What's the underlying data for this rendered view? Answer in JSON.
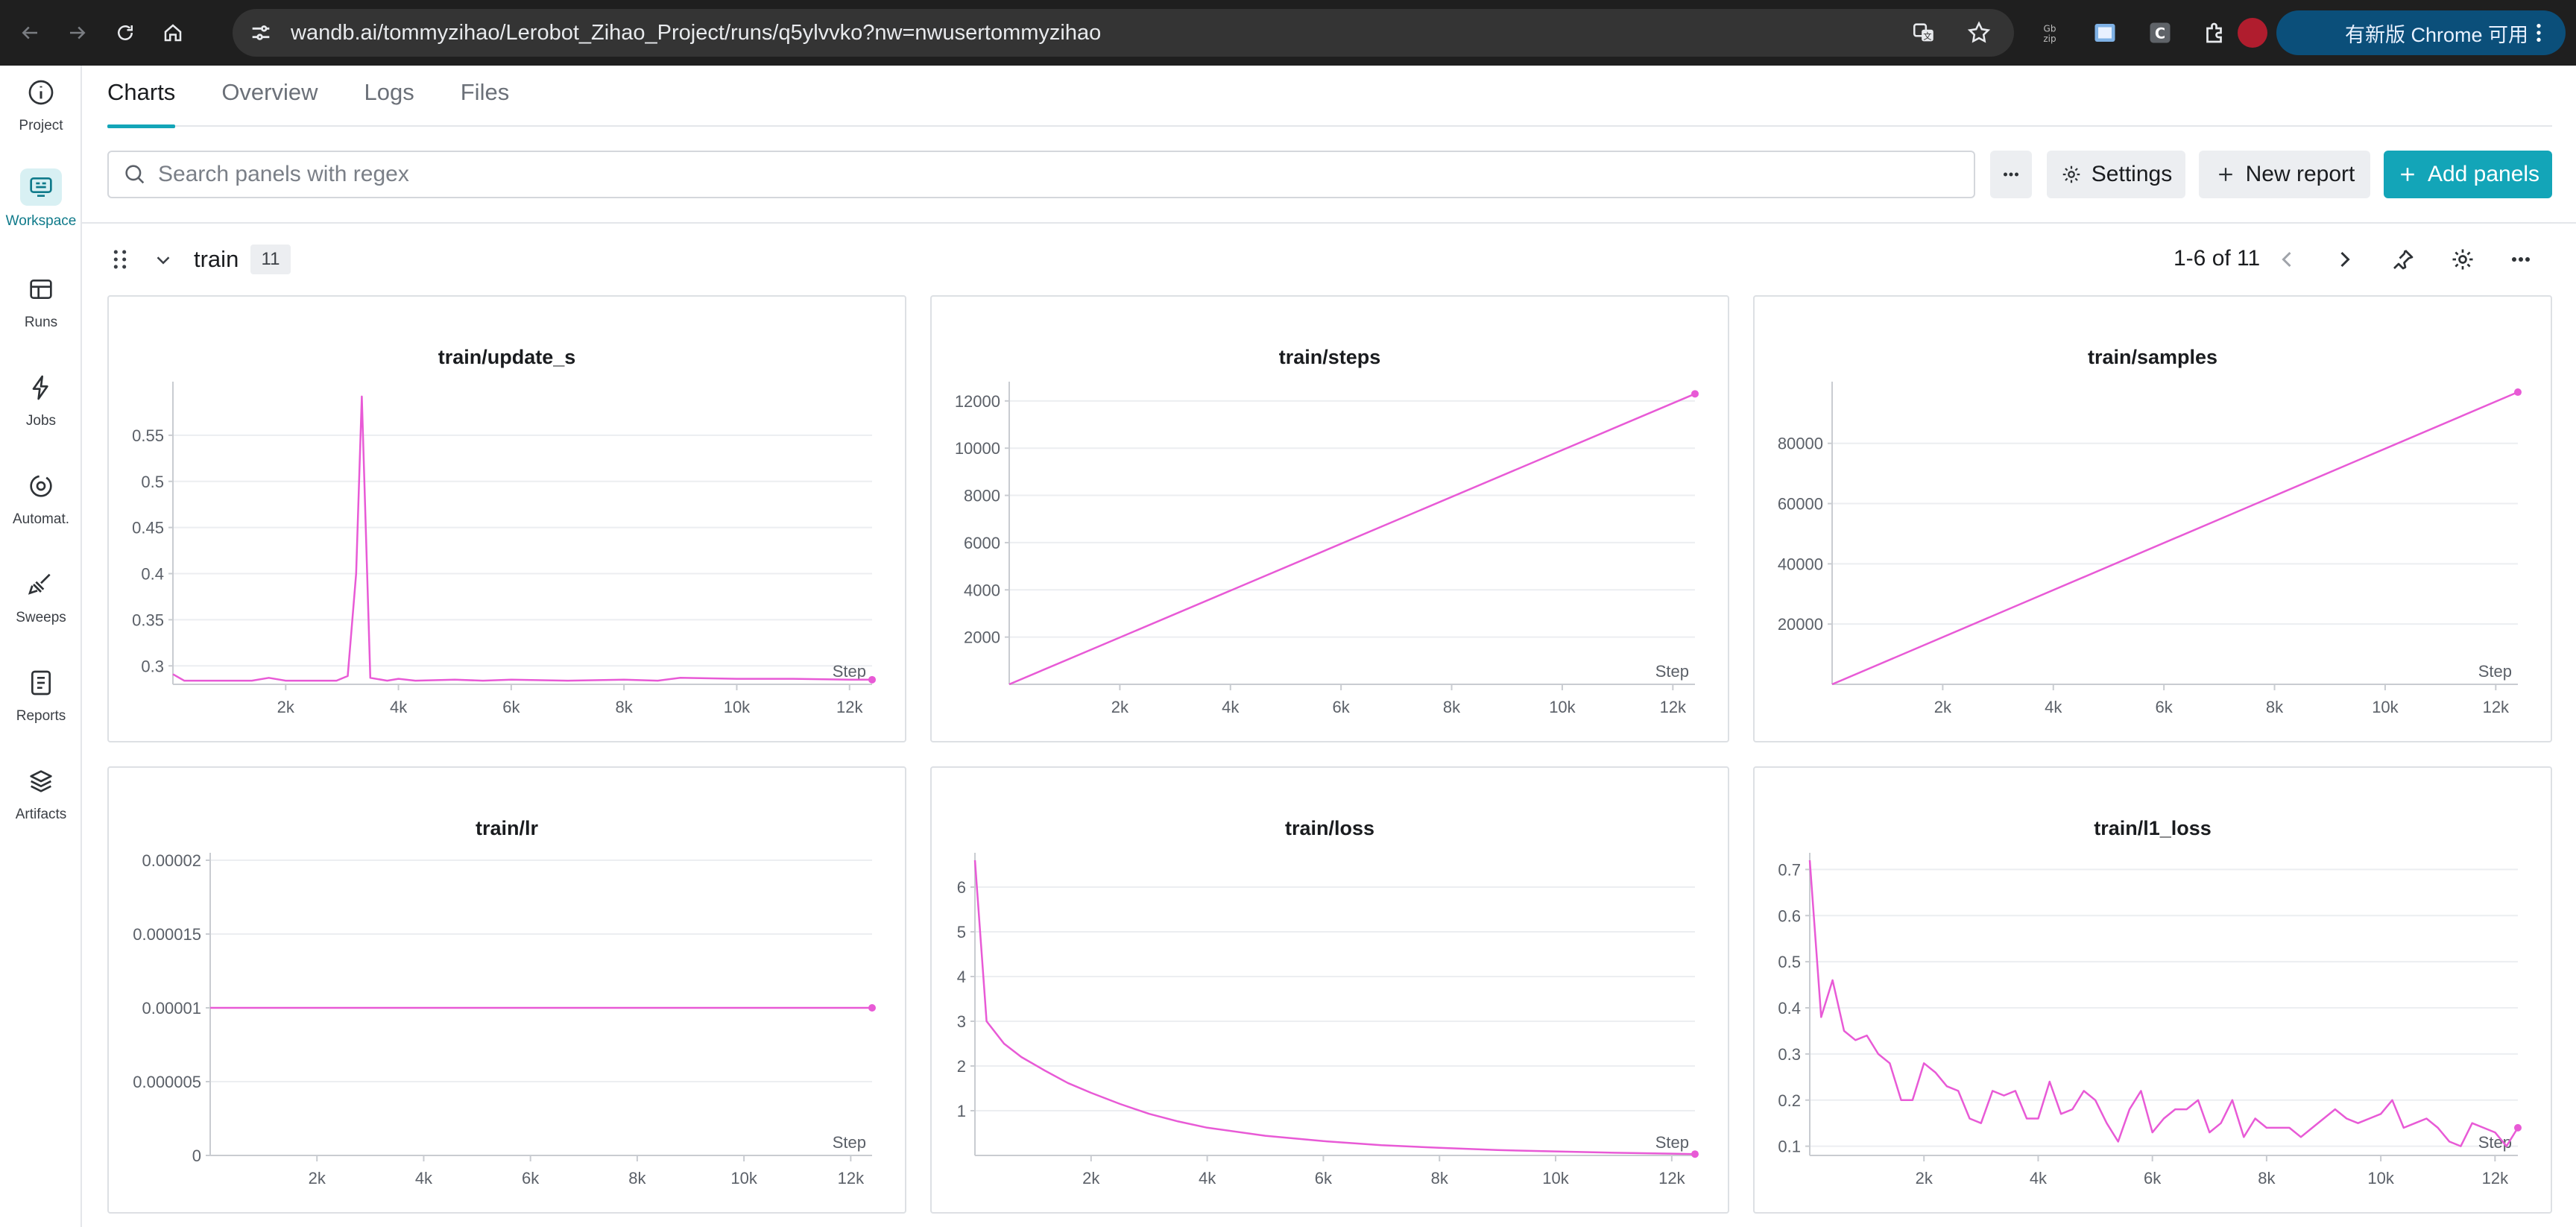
{
  "browser": {
    "url": "wandb.ai/tommyzihao/Lerobot_Zihao_Project/runs/q5ylvvko?nw=nwusertommyzihao",
    "update_label": "有新版 Chrome 可用"
  },
  "rail": {
    "items": [
      {
        "label": "Project",
        "icon": "info-icon"
      },
      {
        "label": "Workspace",
        "icon": "workspace-icon"
      },
      {
        "label": "Runs",
        "icon": "table-icon"
      },
      {
        "label": "Jobs",
        "icon": "lightning-icon"
      },
      {
        "label": "Automat.",
        "icon": "automation-icon"
      },
      {
        "label": "Sweeps",
        "icon": "broom-icon"
      },
      {
        "label": "Reports",
        "icon": "report-icon"
      },
      {
        "label": "Artifacts",
        "icon": "layers-icon"
      }
    ]
  },
  "tabs": [
    {
      "label": "Charts"
    },
    {
      "label": "Overview"
    },
    {
      "label": "Logs"
    },
    {
      "label": "Files"
    }
  ],
  "toolbar": {
    "search_placeholder": "Search panels with regex",
    "settings_label": "Settings",
    "new_report_label": "New report",
    "add_panels_label": "Add panels"
  },
  "section": {
    "title": "train",
    "count": "11",
    "pager": "1-6 of 11"
  },
  "colors": {
    "accent": "#13a5b8",
    "series": "#e85ad6"
  },
  "chart_data": [
    {
      "type": "line",
      "title": "train/update_s",
      "xlabel": "Step",
      "xlim": [
        0,
        12400
      ],
      "ylim": [
        0.28,
        0.6
      ],
      "xticks": [
        2000,
        4000,
        6000,
        8000,
        10000,
        12000
      ],
      "xtick_labels": [
        "2k",
        "4k",
        "6k",
        "8k",
        "10k",
        "12k"
      ],
      "yticks": [
        0.3,
        0.35,
        0.4,
        0.45,
        0.5,
        0.55
      ],
      "ytick_labels": [
        "0.3",
        "0.35",
        "0.4",
        "0.45",
        "0.5",
        "0.55"
      ],
      "x": [
        0,
        200,
        800,
        1400,
        1700,
        2000,
        2600,
        2900,
        3100,
        3250,
        3350,
        3500,
        3800,
        4000,
        4300,
        5000,
        5500,
        6000,
        7000,
        8000,
        8600,
        9000,
        10000,
        11000,
        12000,
        12400
      ],
      "y": [
        0.291,
        0.284,
        0.284,
        0.284,
        0.287,
        0.284,
        0.284,
        0.284,
        0.289,
        0.4,
        0.592,
        0.287,
        0.284,
        0.286,
        0.284,
        0.285,
        0.284,
        0.285,
        0.284,
        0.285,
        0.284,
        0.287,
        0.286,
        0.286,
        0.285,
        0.285
      ]
    },
    {
      "type": "line",
      "title": "train/steps",
      "xlabel": "Step",
      "xlim": [
        0,
        12400
      ],
      "ylim": [
        0,
        12500
      ],
      "xticks": [
        2000,
        4000,
        6000,
        8000,
        10000,
        12000
      ],
      "xtick_labels": [
        "2k",
        "4k",
        "6k",
        "8k",
        "10k",
        "12k"
      ],
      "yticks": [
        2000,
        4000,
        6000,
        8000,
        10000,
        12000
      ],
      "ytick_labels": [
        "2000",
        "4000",
        "6000",
        "8000",
        "10000",
        "12000"
      ],
      "x": [
        0,
        12400
      ],
      "y": [
        0,
        12300
      ]
    },
    {
      "type": "line",
      "title": "train/samples",
      "xlabel": "Step",
      "xlim": [
        0,
        12400
      ],
      "ylim": [
        0,
        98000
      ],
      "xticks": [
        2000,
        4000,
        6000,
        8000,
        10000,
        12000
      ],
      "xtick_labels": [
        "2k",
        "4k",
        "6k",
        "8k",
        "10k",
        "12k"
      ],
      "yticks": [
        20000,
        40000,
        60000,
        80000
      ],
      "ytick_labels": [
        "20000",
        "40000",
        "60000",
        "80000"
      ],
      "x": [
        0,
        12400
      ],
      "y": [
        0,
        97000
      ]
    },
    {
      "type": "line",
      "title": "train/lr",
      "xlabel": "Step",
      "xlim": [
        0,
        12400
      ],
      "ylim": [
        0,
        2e-05
      ],
      "xticks": [
        2000,
        4000,
        6000,
        8000,
        10000,
        12000
      ],
      "xtick_labels": [
        "2k",
        "4k",
        "6k",
        "8k",
        "10k",
        "12k"
      ],
      "yticks": [
        0,
        5e-06,
        1e-05,
        1.5e-05,
        2e-05
      ],
      "ytick_labels": [
        "0",
        "0.000005",
        "0.00001",
        "0.000015",
        "0.00002"
      ],
      "x": [
        0,
        12400
      ],
      "y": [
        1e-05,
        1e-05
      ]
    },
    {
      "type": "line",
      "title": "train/loss",
      "xlabel": "Step",
      "xlim": [
        0,
        12400
      ],
      "ylim": [
        0,
        6.6
      ],
      "xticks": [
        2000,
        4000,
        6000,
        8000,
        10000,
        12000
      ],
      "xtick_labels": [
        "2k",
        "4k",
        "6k",
        "8k",
        "10k",
        "12k"
      ],
      "yticks": [
        1,
        2,
        3,
        4,
        5,
        6
      ],
      "ytick_labels": [
        "1",
        "2",
        "3",
        "4",
        "5",
        "6"
      ],
      "x": [
        0,
        200,
        500,
        800,
        1200,
        1600,
        2000,
        2500,
        3000,
        3500,
        4000,
        5000,
        6000,
        7000,
        8000,
        9000,
        10000,
        11000,
        12000,
        12400
      ],
      "y": [
        6.6,
        3.0,
        2.5,
        2.2,
        1.9,
        1.62,
        1.4,
        1.15,
        0.93,
        0.76,
        0.62,
        0.44,
        0.32,
        0.23,
        0.17,
        0.12,
        0.09,
        0.06,
        0.04,
        0.03
      ]
    },
    {
      "type": "line",
      "title": "train/l1_loss",
      "xlabel": "Step",
      "xlim": [
        0,
        12400
      ],
      "ylim": [
        0.08,
        0.72
      ],
      "xticks": [
        2000,
        4000,
        6000,
        8000,
        10000,
        12000
      ],
      "xtick_labels": [
        "2k",
        "4k",
        "6k",
        "8k",
        "10k",
        "12k"
      ],
      "yticks": [
        0.1,
        0.2,
        0.3,
        0.4,
        0.5,
        0.6,
        0.7
      ],
      "ytick_labels": [
        "0.1",
        "0.2",
        "0.3",
        "0.4",
        "0.5",
        "0.6",
        "0.7"
      ],
      "x": [
        0,
        200,
        400,
        600,
        800,
        1000,
        1200,
        1400,
        1600,
        1800,
        2000,
        2200,
        2400,
        2600,
        2800,
        3000,
        3200,
        3400,
        3600,
        3800,
        4000,
        4200,
        4400,
        4600,
        4800,
        5000,
        5200,
        5400,
        5600,
        5800,
        6000,
        6200,
        6400,
        6600,
        6800,
        7000,
        7200,
        7400,
        7600,
        7800,
        8000,
        8200,
        8400,
        8600,
        8800,
        9000,
        9200,
        9400,
        9600,
        9800,
        10000,
        10200,
        10400,
        10600,
        10800,
        11000,
        11200,
        11400,
        11600,
        11800,
        12000,
        12200,
        12400
      ],
      "y": [
        0.72,
        0.38,
        0.46,
        0.35,
        0.33,
        0.34,
        0.3,
        0.28,
        0.2,
        0.2,
        0.28,
        0.26,
        0.23,
        0.22,
        0.16,
        0.15,
        0.22,
        0.21,
        0.22,
        0.16,
        0.16,
        0.24,
        0.17,
        0.18,
        0.22,
        0.2,
        0.15,
        0.11,
        0.18,
        0.22,
        0.13,
        0.16,
        0.18,
        0.18,
        0.2,
        0.13,
        0.15,
        0.2,
        0.12,
        0.16,
        0.14,
        0.14,
        0.14,
        0.12,
        0.14,
        0.16,
        0.18,
        0.16,
        0.15,
        0.16,
        0.17,
        0.2,
        0.14,
        0.15,
        0.16,
        0.14,
        0.11,
        0.1,
        0.15,
        0.14,
        0.13,
        0.1,
        0.14
      ]
    }
  ]
}
